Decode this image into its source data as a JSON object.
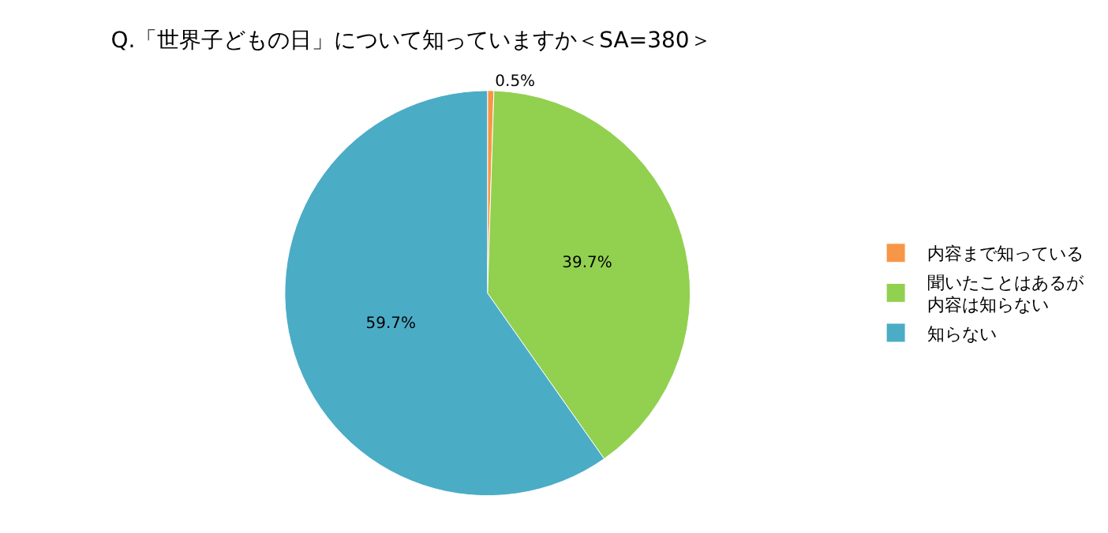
{
  "chart_data": {
    "type": "pie",
    "title": "Q.「世界子どもの日」について知っていますか＜SA=380＞",
    "categories": [
      "内容まで知っている",
      "聞いたことはあるが内容は知らない",
      "知らない"
    ],
    "values": [
      0.5,
      39.7,
      59.7
    ],
    "colors": [
      "#f79646",
      "#92d050",
      "#4bacc6"
    ],
    "value_labels": [
      "0.5%",
      "39.7%",
      "59.7%"
    ],
    "legend": "right"
  }
}
